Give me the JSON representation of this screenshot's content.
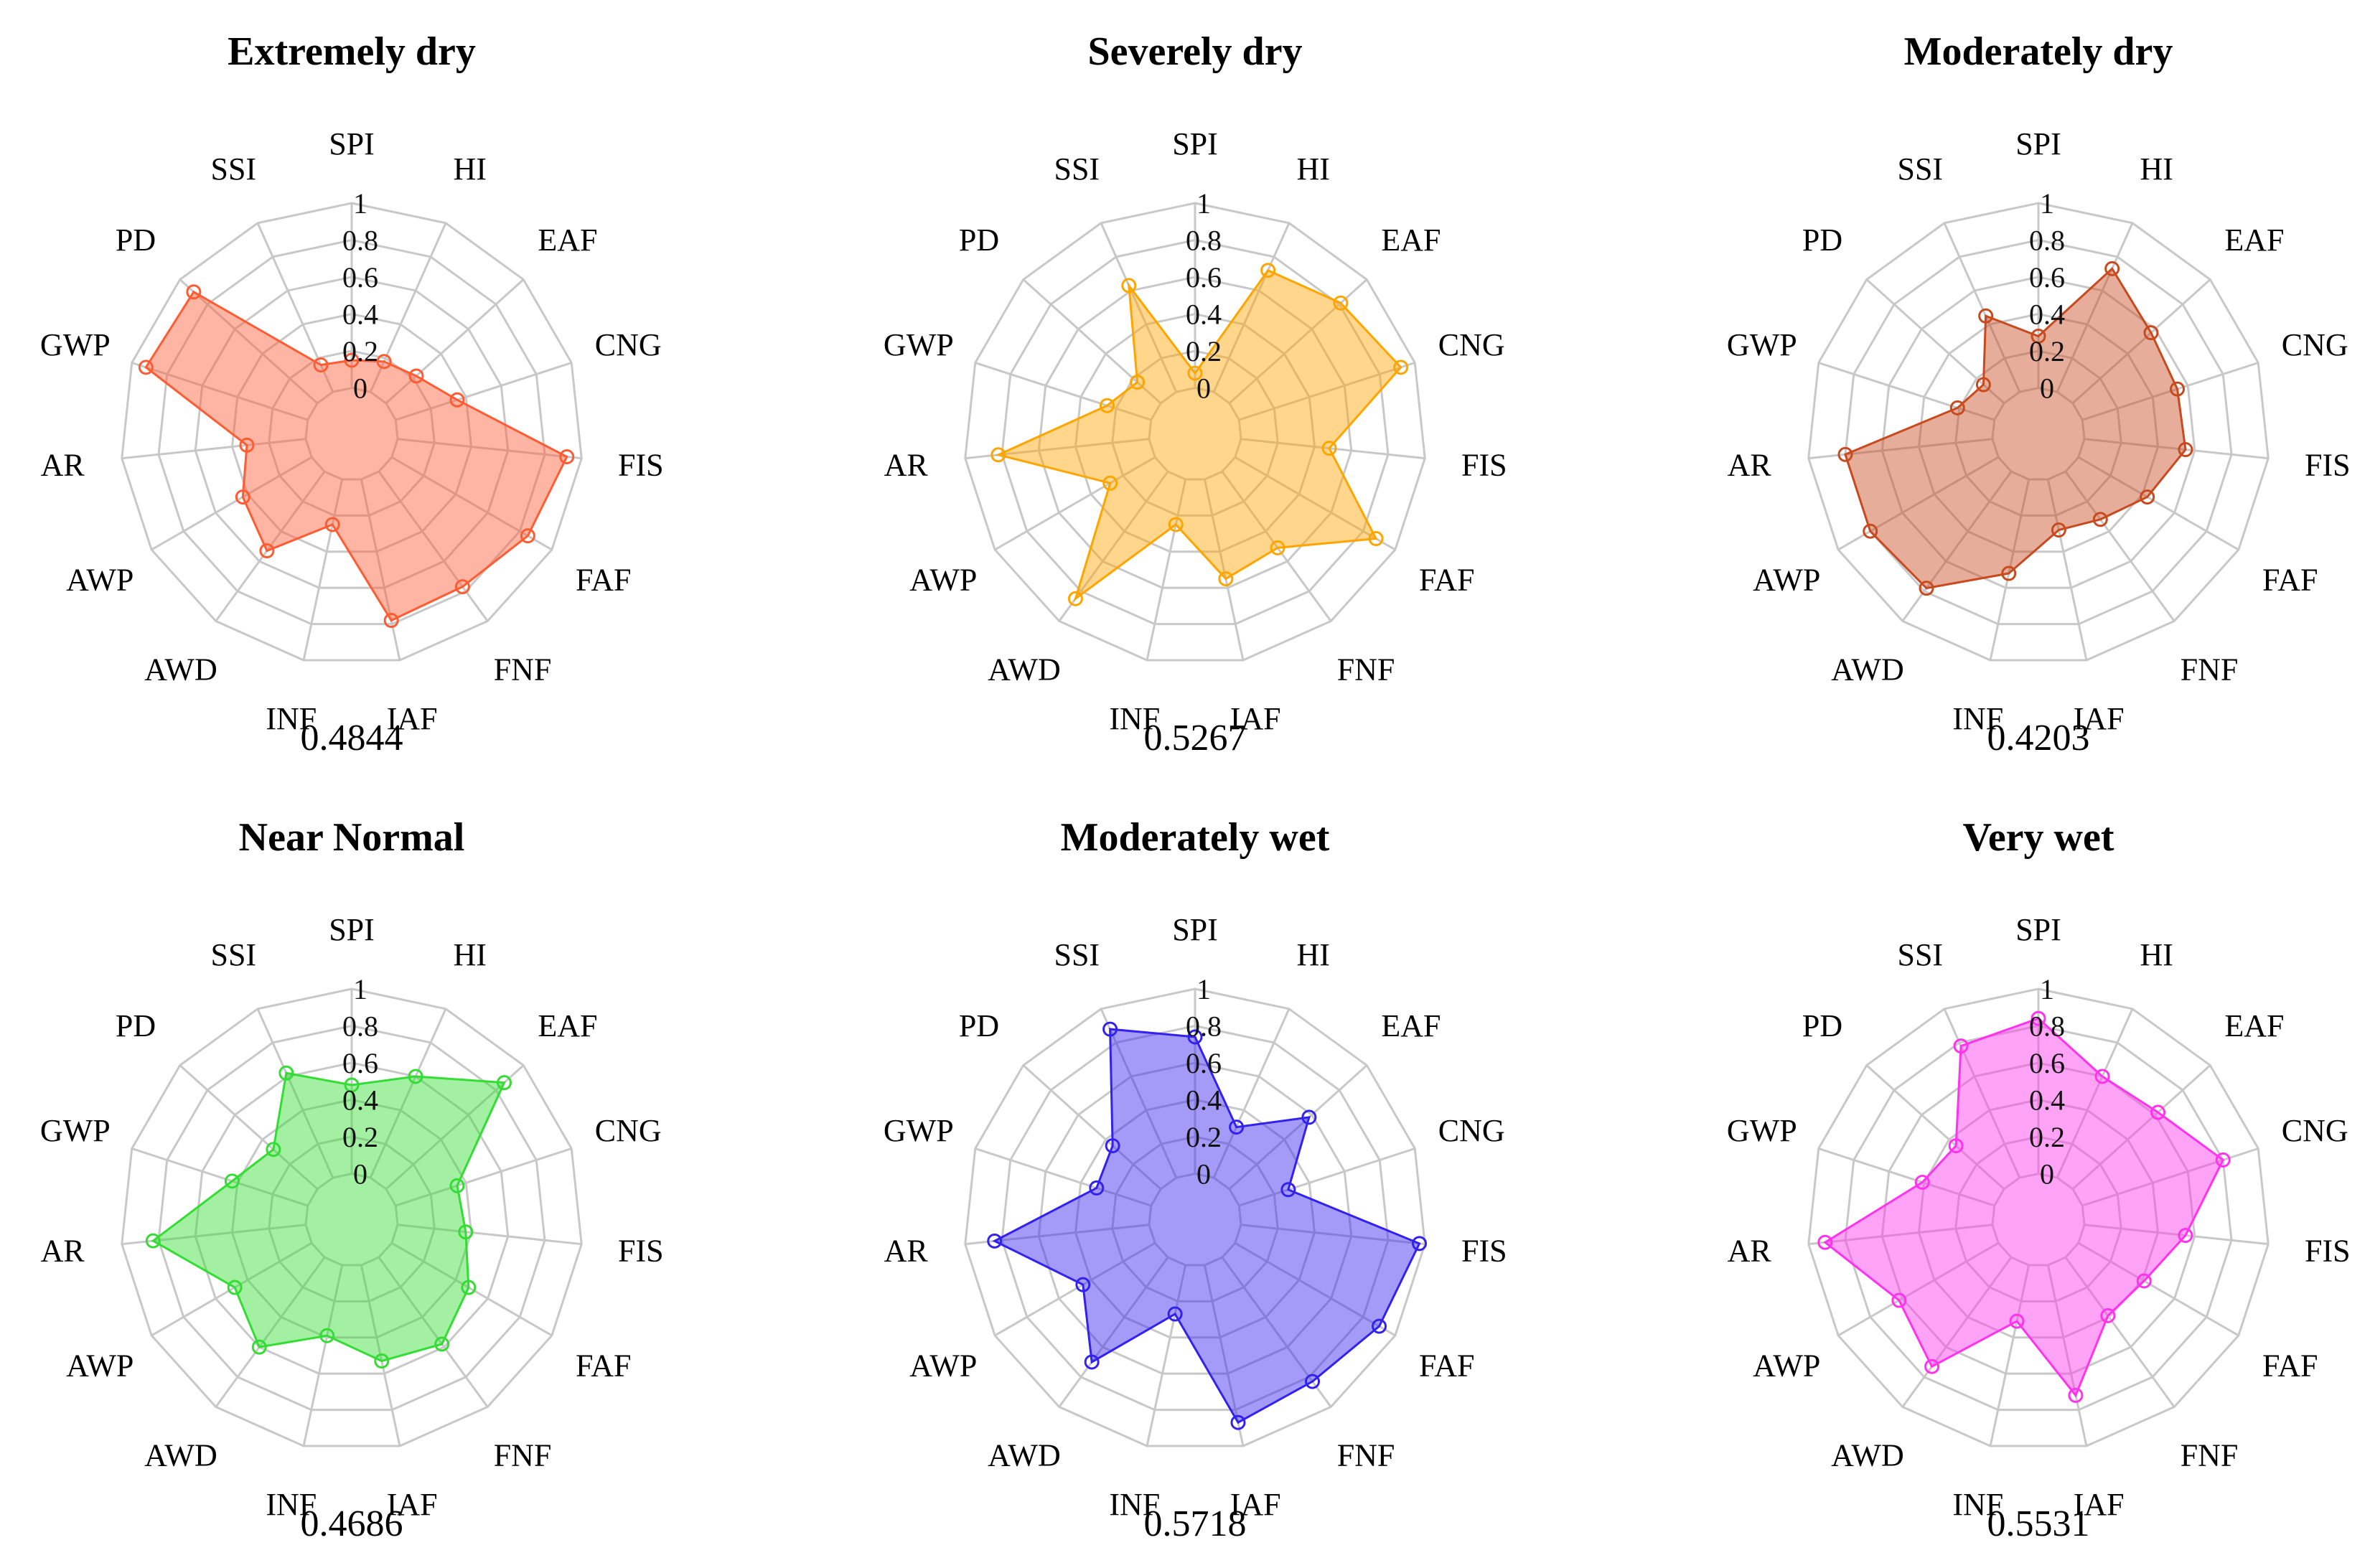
{
  "chart_data": [
    {
      "type": "radar",
      "title": "Extremely dry",
      "score": "0.4844",
      "color": "#ff5c33",
      "axes": [
        "SPI",
        "HI",
        "EAF",
        "CNG",
        "FIS",
        "FAF",
        "FNF",
        "IAF",
        "INF",
        "AWD",
        "AWP",
        "AR",
        "GWP",
        "PD",
        "SSI"
      ],
      "ticks": [
        "0",
        "0.2",
        "0.4",
        "0.6",
        "0.8",
        "1"
      ],
      "range": [
        0,
        1
      ],
      "values": [
        0.15,
        0.18,
        0.22,
        0.35,
        0.92,
        0.85,
        0.77,
        0.78,
        0.25,
        0.53,
        0.43,
        0.32,
        0.92,
        0.9,
        0.16
      ]
    },
    {
      "type": "radar",
      "title": "Severely dry",
      "score": "0.5267",
      "color": "#ffa500",
      "axes": [
        "SPI",
        "HI",
        "EAF",
        "CNG",
        "FIS",
        "FAF",
        "FNF",
        "IAF",
        "INF",
        "AWD",
        "AWP",
        "AR",
        "GWP",
        "PD",
        "SSI"
      ],
      "ticks": [
        "0",
        "0.2",
        "0.4",
        "0.6",
        "0.8",
        "1"
      ],
      "range": [
        0,
        1
      ],
      "values": [
        0.08,
        0.72,
        0.81,
        0.92,
        0.48,
        0.88,
        0.51,
        0.55,
        0.25,
        0.85,
        0.28,
        0.82,
        0.25,
        0.17,
        0.63
      ]
    },
    {
      "type": "radar",
      "title": "Moderately dry",
      "score": "0.4203",
      "color": "#c84a1e",
      "axes": [
        "SPI",
        "HI",
        "EAF",
        "CNG",
        "FIS",
        "FAF",
        "FNF",
        "IAF",
        "INF",
        "AWD",
        "AWP",
        "AR",
        "GWP",
        "PD",
        "SSI"
      ],
      "ticks": [
        "0",
        "0.2",
        "0.4",
        "0.6",
        "0.8",
        "1"
      ],
      "range": [
        0,
        1
      ],
      "values": [
        0.28,
        0.73,
        0.57,
        0.54,
        0.55,
        0.43,
        0.32,
        0.28,
        0.52,
        0.78,
        0.8,
        0.8,
        0.21,
        0.15,
        0.45
      ]
    },
    {
      "type": "radar",
      "title": "Near Normal",
      "score": "0.4686",
      "color": "#33dd33",
      "axes": [
        "SPI",
        "HI",
        "EAF",
        "CNG",
        "FIS",
        "FAF",
        "FNF",
        "IAF",
        "INF",
        "AWD",
        "AWP",
        "AR",
        "GWP",
        "PD",
        "SSI"
      ],
      "ticks": [
        "0",
        "0.2",
        "0.4",
        "0.6",
        "0.8",
        "1"
      ],
      "range": [
        0,
        1
      ],
      "values": [
        0.48,
        0.6,
        0.86,
        0.35,
        0.37,
        0.48,
        0.58,
        0.53,
        0.39,
        0.6,
        0.48,
        0.83,
        0.43,
        0.32,
        0.62
      ]
    },
    {
      "type": "radar",
      "title": "Moderately wet",
      "score": "0.5718",
      "color": "#3322ee",
      "axes": [
        "SPI",
        "HI",
        "EAF",
        "CNG",
        "FIS",
        "FAF",
        "FNF",
        "IAF",
        "INF",
        "AWD",
        "AWP",
        "AR",
        "GWP",
        "PD",
        "SSI"
      ],
      "ticks": [
        "0",
        "0.2",
        "0.4",
        "0.6",
        "0.8",
        "1"
      ],
      "range": [
        0,
        1
      ],
      "values": [
        0.74,
        0.3,
        0.58,
        0.28,
        0.97,
        0.9,
        0.83,
        0.87,
        0.27,
        0.7,
        0.45,
        0.84,
        0.31,
        0.35,
        0.88
      ]
    },
    {
      "type": "radar",
      "title": "Very wet",
      "score": "0.5531",
      "color": "#ff33ee",
      "axes": [
        "SPI",
        "HI",
        "EAF",
        "CNG",
        "FIS",
        "FAF",
        "FNF",
        "IAF",
        "INF",
        "AWD",
        "AWP",
        "AR",
        "GWP",
        "PD",
        "SSI"
      ],
      "ticks": [
        "0",
        "0.2",
        "0.4",
        "0.6",
        "0.8",
        "1"
      ],
      "range": [
        0,
        1
      ],
      "values": [
        0.84,
        0.6,
        0.62,
        0.8,
        0.55,
        0.41,
        0.39,
        0.72,
        0.31,
        0.73,
        0.62,
        0.91,
        0.41,
        0.35,
        0.78
      ]
    }
  ]
}
